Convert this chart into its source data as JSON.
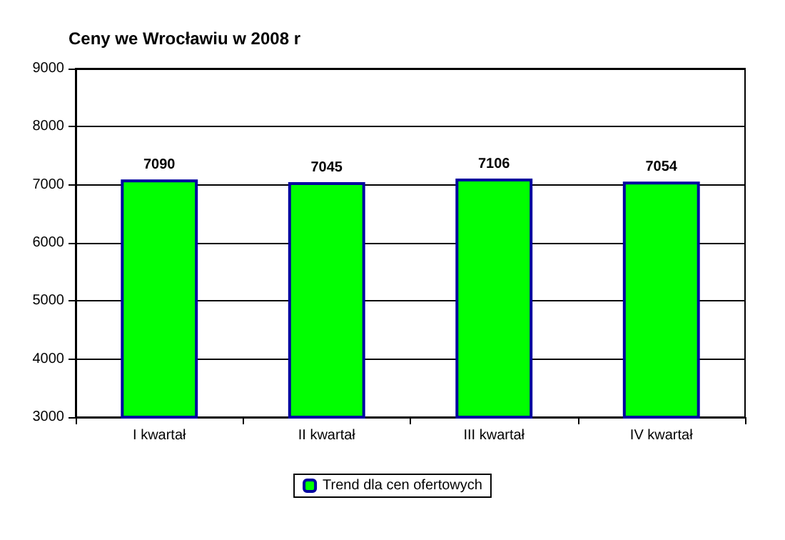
{
  "chart_data": {
    "type": "bar",
    "title": "Ceny we Wrocławiu w 2008 r",
    "categories": [
      "I kwartał",
      "II kwartał",
      "III kwartał",
      "IV kwartał"
    ],
    "series": [
      {
        "name": "Trend dla cen ofertowych",
        "color": "#00ff00",
        "values": [
          7090,
          7045,
          7106,
          7054
        ]
      }
    ],
    "ylim": [
      3000,
      9000
    ],
    "yticks": [
      3000,
      4000,
      5000,
      6000,
      7000,
      8000,
      9000
    ],
    "grid": "y",
    "legend": "bottom",
    "data_labels": true
  }
}
